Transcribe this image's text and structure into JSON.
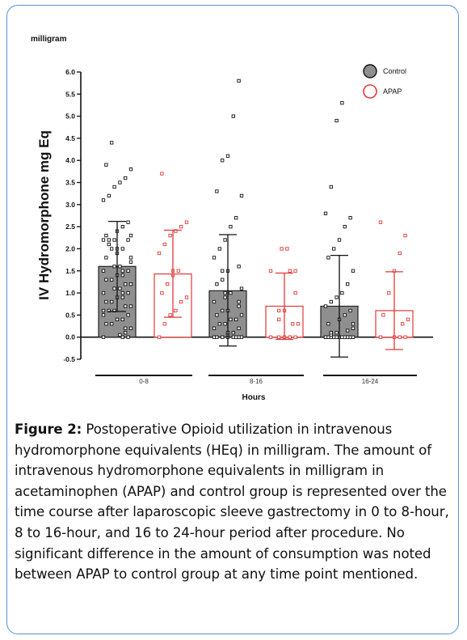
{
  "chart_data": {
    "type": "bar",
    "unit_label": "milligram",
    "ylabel": "IV Hydromorphone mg Eq",
    "xlabel": "Hours",
    "ylim": [
      -0.5,
      6.0
    ],
    "yticks": [
      "-0.5",
      "0.0",
      "0.5",
      "1.0",
      "1.5",
      "2.0",
      "2.5",
      "3.0",
      "3.5",
      "4.0",
      "4.5",
      "5.0",
      "5.5",
      "6.0"
    ],
    "categories": [
      "0-8",
      "8-16",
      "16-24"
    ],
    "legend_position": "top-right",
    "colors": {
      "control_fill": "#8f8f8f",
      "apap_edge": "#e03a3a",
      "point_black": "#111111"
    },
    "series": [
      {
        "name": "Control",
        "values": [
          1.6,
          1.05,
          0.7
        ],
        "sd_upper": [
          2.62,
          2.32,
          1.85
        ],
        "sd_lower": [
          0.58,
          -0.2,
          -0.45
        ],
        "points": [
          [
            0,
            0,
            0,
            0.05,
            0.1,
            0.2,
            0.2,
            0.3,
            0.3,
            0.4,
            0.4,
            0.5,
            0.5,
            0.6,
            0.6,
            0.6,
            0.7,
            0.7,
            0.8,
            0.8,
            0.9,
            0.9,
            1.0,
            1.0,
            1.0,
            1.1,
            1.1,
            1.2,
            1.2,
            1.3,
            1.3,
            1.4,
            1.4,
            1.5,
            1.5,
            1.5,
            1.6,
            1.6,
            1.7,
            1.8,
            1.8,
            1.9,
            2.0,
            2.0,
            2.0,
            2.1,
            2.2,
            2.2,
            2.2,
            2.2,
            2.3,
            2.3,
            2.4,
            2.5,
            2.6,
            3.1,
            3.2,
            3.4,
            3.5,
            3.6,
            3.8,
            3.9,
            4.4
          ],
          [
            0,
            0,
            0,
            0,
            0,
            0,
            0,
            0,
            0.05,
            0.1,
            0.1,
            0.2,
            0.2,
            0.3,
            0.3,
            0.4,
            0.4,
            0.5,
            0.5,
            0.6,
            0.6,
            0.7,
            0.8,
            0.8,
            0.9,
            1.0,
            1.0,
            1.1,
            1.2,
            1.3,
            1.5,
            1.5,
            1.6,
            1.8,
            2.0,
            2.2,
            2.5,
            2.7,
            3.2,
            3.3,
            4.0,
            4.1,
            5.0,
            5.8
          ],
          [
            0,
            0,
            0,
            0,
            0,
            0,
            0,
            0,
            0,
            0,
            0,
            0,
            0.05,
            0.1,
            0.1,
            0.15,
            0.2,
            0.3,
            0.3,
            0.4,
            0.5,
            0.6,
            0.7,
            0.8,
            0.9,
            1.0,
            1.2,
            1.5,
            1.8,
            2.0,
            2.2,
            2.5,
            2.7,
            2.8,
            3.4,
            4.9,
            5.3
          ]
        ]
      },
      {
        "name": "APAP",
        "values": [
          1.43,
          0.7,
          0.6
        ],
        "sd_upper": [
          2.42,
          1.45,
          1.48
        ],
        "sd_lower": [
          0.45,
          -0.05,
          -0.28
        ],
        "points": [
          [
            0,
            0.3,
            0.5,
            0.6,
            0.8,
            0.9,
            1.0,
            1.2,
            1.4,
            1.5,
            1.5,
            1.9,
            2.1,
            2.3,
            2.4,
            2.5,
            2.6,
            3.7
          ],
          [
            0,
            0,
            0,
            0,
            0,
            0.3,
            0.3,
            0.4,
            0.6,
            0.6,
            1.0,
            1.5,
            1.5,
            1.5,
            2.0,
            2.0
          ],
          [
            0,
            0,
            0,
            0,
            0.3,
            0.4,
            0.5,
            1.0,
            1.5,
            1.9,
            2.3,
            2.6
          ]
        ]
      }
    ]
  },
  "caption": {
    "label": "Figure 2:",
    "text": " Postoperative Opioid utilization in intravenous hydromorphone equivalents (HEq) in milligram. The amount of intravenous hydromorphone equivalents in milligram in acetaminophen (APAP) and control group is represented over the time course after laparoscopic sleeve gastrectomy in 0 to 8-hour, 8 to 16-hour, and 16 to 24-hour period after procedure. No significant difference in the amount of consumption was noted between APAP to control group at any time point mentioned."
  }
}
